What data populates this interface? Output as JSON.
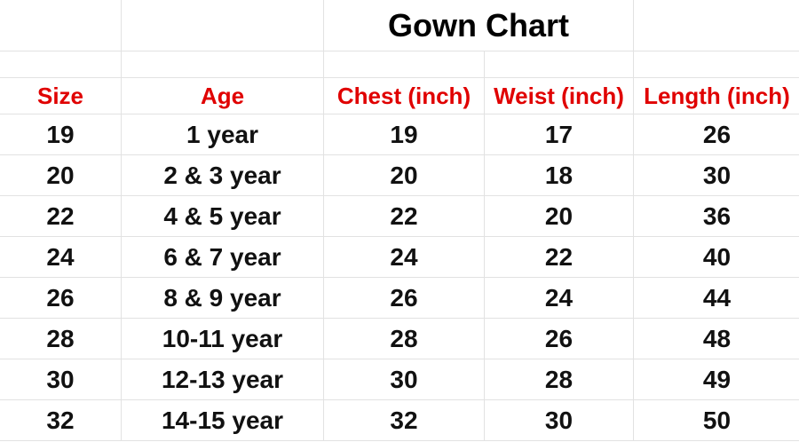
{
  "title": "Gown Chart",
  "colors": {
    "header": "#e00000",
    "text": "#111111",
    "grid": "#e2e2e2"
  },
  "columns": [
    "Size",
    "Age",
    "Chest (inch)",
    "Weist (inch)",
    "Length (inch)"
  ],
  "rows": [
    [
      "19",
      "1 year",
      "19",
      "17",
      "26"
    ],
    [
      "20",
      "2 & 3 year",
      "20",
      "18",
      "30"
    ],
    [
      "22",
      "4 & 5 year",
      "22",
      "20",
      "36"
    ],
    [
      "24",
      "6 & 7 year",
      "24",
      "22",
      "40"
    ],
    [
      "26",
      "8 & 9 year",
      "26",
      "24",
      "44"
    ],
    [
      "28",
      "10-11 year",
      "28",
      "26",
      "48"
    ],
    [
      "30",
      "12-13 year",
      "30",
      "28",
      "49"
    ],
    [
      "32",
      "14-15 year",
      "32",
      "30",
      "50"
    ]
  ]
}
